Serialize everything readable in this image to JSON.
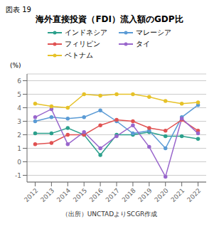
{
  "chart_data": {
    "type": "line",
    "title": "海外直接投資（FDI）流入額のGDP比",
    "annotations": [
      "図表 19",
      "（出所）UNCTADよりSCGR作成"
    ],
    "y_label": "(%)",
    "x": [
      2012,
      2013,
      2014,
      2015,
      2016,
      2017,
      2018,
      2019,
      2020,
      2021,
      2022
    ],
    "series": [
      {
        "name": "インドネシア",
        "color": "#2ca08c",
        "marker": "circle",
        "values": [
          2.1,
          2.1,
          2.5,
          2.0,
          0.5,
          2.0,
          2.0,
          2.2,
          1.9,
          1.9,
          1.7
        ]
      },
      {
        "name": "マレーシア",
        "color": "#5b9bd5",
        "marker": "circle",
        "values": [
          3.0,
          3.3,
          3.2,
          3.3,
          3.8,
          3.0,
          2.1,
          2.3,
          1.0,
          3.3,
          4.2
        ]
      },
      {
        "name": "フィリピン",
        "color": "#e05252",
        "marker": "circle",
        "values": [
          1.3,
          1.4,
          2.0,
          2.0,
          2.7,
          3.1,
          3.0,
          2.5,
          2.3,
          3.1,
          2.3
        ]
      },
      {
        "name": "タイ",
        "color": "#9966cc",
        "marker": "circle",
        "values": [
          3.3,
          3.9,
          1.3,
          2.2,
          1.0,
          1.9,
          2.7,
          1.1,
          -1.1,
          3.2,
          2.1
        ]
      },
      {
        "name": "ベトナム",
        "color": "#e6c229",
        "marker": "circle",
        "values": [
          4.3,
          4.1,
          4.0,
          5.0,
          4.9,
          5.0,
          5.0,
          4.8,
          4.5,
          4.3,
          4.4
        ]
      }
    ],
    "xlim": [
      2011.5,
      2022.5
    ],
    "xticks": [
      2012,
      2013,
      2014,
      2015,
      2016,
      2017,
      2018,
      2019,
      2020,
      2021,
      2022
    ],
    "ylim": [
      -1.5,
      6.5
    ],
    "yticks": [
      -1,
      0,
      1,
      2,
      3,
      4,
      5,
      6
    ],
    "grid": true,
    "legend": "top"
  }
}
